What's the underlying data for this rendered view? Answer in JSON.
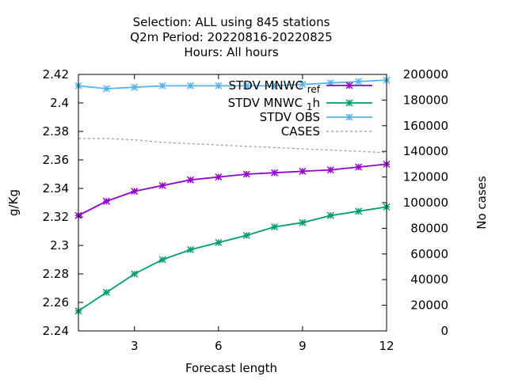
{
  "chart_data": {
    "type": "line",
    "title_lines": [
      "Selection: ALL using   845 stations",
      "Q2m   Period: 20220816-20220825",
      "Hours:  All hours"
    ],
    "xlabel": "Forecast length",
    "ylabel": "g/Kg",
    "y2label": "No cases",
    "xlim": [
      1,
      12
    ],
    "ylim": [
      2.24,
      2.42
    ],
    "y2lim": [
      0,
      200000
    ],
    "xticks": [
      3,
      6,
      9,
      12
    ],
    "yticks": [
      2.24,
      2.26,
      2.28,
      2.3,
      2.32,
      2.34,
      2.36,
      2.38,
      2.4,
      2.42
    ],
    "ytick_labels": [
      "2.24",
      "2.26",
      "2.28",
      "2.3",
      "2.32",
      "2.34",
      "2.36",
      "2.38",
      "2.4",
      "2.42"
    ],
    "y2ticks": [
      0,
      20000,
      40000,
      60000,
      80000,
      100000,
      120000,
      140000,
      160000,
      180000,
      200000
    ],
    "legend_position": "top-right",
    "x": [
      1,
      2,
      3,
      4,
      5,
      6,
      7,
      8,
      9,
      10,
      11,
      12
    ],
    "series": [
      {
        "name": "STDV MNWC_ref",
        "name_base": "STDV MNWC",
        "name_sub": "ref",
        "color": "#9400d3",
        "marker": "star",
        "axis": "y",
        "values": [
          2.321,
          2.331,
          2.338,
          2.342,
          2.346,
          2.348,
          2.35,
          2.351,
          2.352,
          2.353,
          2.355,
          2.357
        ]
      },
      {
        "name": "STDV MNWC_1h",
        "name_base": "STDV MNWC",
        "name_sub": "1",
        "name_after": "h",
        "color": "#009e73",
        "marker": "star",
        "axis": "y",
        "values": [
          2.254,
          2.267,
          2.28,
          2.29,
          2.297,
          2.302,
          2.307,
          2.313,
          2.316,
          2.321,
          2.324,
          2.327
        ]
      },
      {
        "name": "STDV OBS",
        "color": "#56b4e9",
        "marker": "star",
        "axis": "y",
        "values": [
          2.412,
          2.41,
          2.411,
          2.412,
          2.412,
          2.412,
          2.412,
          2.412,
          2.413,
          2.414,
          2.415,
          2.416
        ]
      },
      {
        "name": "CASES",
        "color": "#999999",
        "marker": "none",
        "dashed": true,
        "axis": "y2",
        "values": [
          150000,
          150000,
          149000,
          147000,
          146000,
          145000,
          144000,
          143000,
          142000,
          141000,
          140000,
          139000
        ]
      }
    ]
  }
}
